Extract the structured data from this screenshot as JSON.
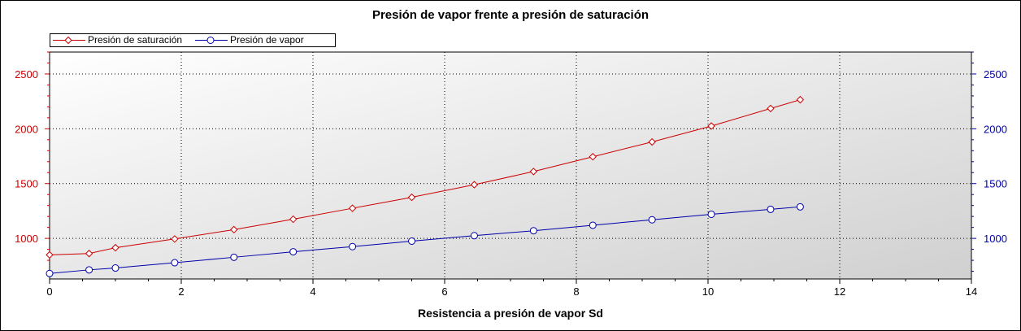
{
  "chart_data": {
    "type": "line",
    "title": "Presión de vapor frente a presión de saturación",
    "xlabel": "Resistencia a presión de vapor Sd",
    "ylabel": "",
    "xlim": [
      0,
      14
    ],
    "ylim": [
      630,
      2700
    ],
    "x_ticks": [
      "0",
      "2",
      "4",
      "6",
      "8",
      "10",
      "12",
      "14"
    ],
    "y_left_ticks": [
      "1000",
      "1500",
      "2000",
      "2500"
    ],
    "y_right_ticks": [
      "1000",
      "1500",
      "2000",
      "2500"
    ],
    "grid": true,
    "legend_position": "top-left",
    "series": [
      {
        "name": "Presión de saturación",
        "color": "#cc0000",
        "marker": "diamond",
        "x": [
          0,
          0.6,
          1,
          1.9,
          2.8,
          3.7,
          4.6,
          5.5,
          6.45,
          7.35,
          8.25,
          9.15,
          10.05,
          10.95,
          11.4
        ],
        "y": [
          850,
          862,
          915,
          995,
          1080,
          1175,
          1275,
          1375,
          1490,
          1610,
          1745,
          1880,
          2025,
          2185,
          2265
        ]
      },
      {
        "name": "Presión de vapor",
        "color": "#0000aa",
        "marker": "circle",
        "x": [
          0,
          0.6,
          1,
          1.9,
          2.8,
          3.7,
          4.6,
          5.5,
          6.45,
          7.35,
          8.25,
          9.15,
          10.05,
          10.95,
          11.4
        ],
        "y": [
          680,
          713,
          730,
          778,
          828,
          878,
          925,
          975,
          1025,
          1070,
          1120,
          1170,
          1220,
          1265,
          1288
        ]
      }
    ]
  }
}
